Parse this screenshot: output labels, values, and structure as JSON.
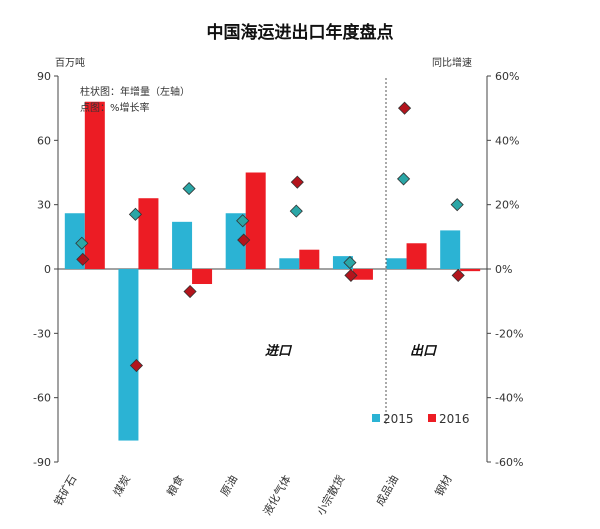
{
  "chart_data": {
    "type": "bar",
    "title": "中国海运进出口年度盘点",
    "left_axis_unit": "百万吨",
    "right_axis_unit": "同比增速",
    "ylim_left": [
      -90,
      90
    ],
    "ylim_right": [
      -0.6,
      0.6
    ],
    "left_ticks": [
      "90",
      "60",
      "30",
      "0",
      "-30",
      "-60",
      "-90"
    ],
    "right_ticks": [
      "60%",
      "40%",
      "20%",
      "0%",
      "-20%",
      "-40%",
      "-60%"
    ],
    "categories": [
      "铁矿石",
      "煤炭",
      "粮食",
      "原油",
      "液化气体",
      "小宗散货",
      "成品油",
      "钢材"
    ],
    "series": [
      {
        "name": "2015",
        "color": "#2bb3d4",
        "bar_values": [
          26,
          -80,
          22,
          26,
          5,
          6,
          5,
          18
        ],
        "pct_values": [
          0.08,
          0.17,
          0.25,
          0.15,
          0.18,
          0.02,
          0.28,
          0.2
        ]
      },
      {
        "name": "2016",
        "color": "#ec1c24",
        "bar_values": [
          78,
          33,
          -7,
          45,
          9,
          -5,
          12,
          -1
        ],
        "pct_values": [
          0.03,
          -0.3,
          -0.07,
          0.09,
          0.27,
          -0.02,
          0.5,
          -0.02
        ]
      }
    ],
    "annotations": {
      "note_line1": "柱状图：年增量（左轴）",
      "note_line2": "点图：%增长率",
      "region_import": "进口",
      "region_export": "出口"
    },
    "legend": {
      "position": "bottom-right",
      "items": [
        "2015",
        "2016"
      ]
    },
    "grid": false
  }
}
